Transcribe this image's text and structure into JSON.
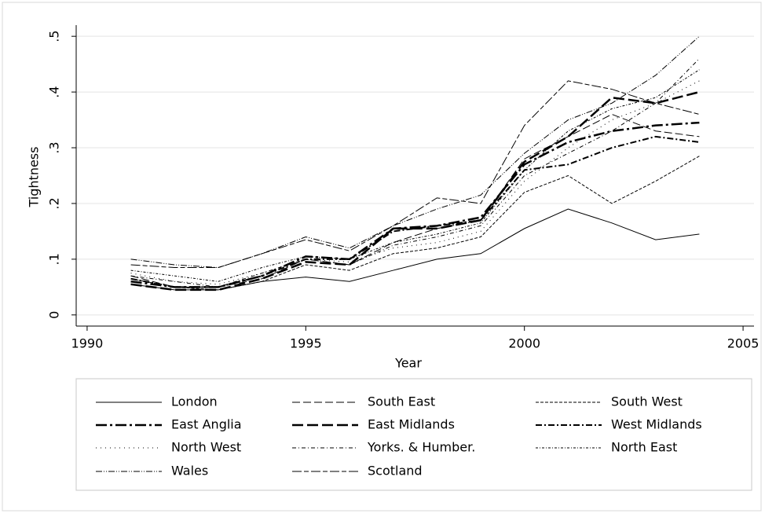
{
  "chart_data": {
    "type": "line",
    "xlabel": "Year",
    "ylabel": "Tightness",
    "x": [
      1991,
      1992,
      1993,
      1994,
      1995,
      1996,
      1997,
      1998,
      1999,
      2000,
      2001,
      2002,
      2003,
      2004
    ],
    "xlim": [
      1989.75,
      2005.25
    ],
    "xticks": [
      1990,
      1995,
      2000,
      2005
    ],
    "ylim": [
      -0.02,
      0.52
    ],
    "yticks": [
      0,
      {
        "value": 0.1,
        "label": ".1"
      },
      {
        "value": 0.2,
        "label": ".2"
      },
      {
        "value": 0.3,
        "label": ".3"
      },
      {
        "value": 0.4,
        "label": ".4"
      },
      {
        "value": 0.5,
        "label": ".5"
      }
    ],
    "grid": true,
    "series": [
      {
        "name": "London",
        "color": "#000000",
        "dash": "",
        "width": 1,
        "values": [
          0.055,
          0.045,
          0.045,
          0.06,
          0.068,
          0.06,
          0.08,
          0.1,
          0.11,
          0.155,
          0.19,
          0.165,
          0.135,
          0.145
        ]
      },
      {
        "name": "South East",
        "color": "#000000",
        "dash": "10 4",
        "width": 1,
        "values": [
          0.07,
          0.05,
          0.05,
          0.065,
          0.1,
          0.09,
          0.13,
          0.155,
          0.17,
          0.28,
          0.32,
          0.36,
          0.33,
          0.32
        ]
      },
      {
        "name": "South West",
        "color": "#000000",
        "dash": "4 2",
        "width": 1,
        "values": [
          0.065,
          0.05,
          0.045,
          0.06,
          0.09,
          0.08,
          0.11,
          0.12,
          0.14,
          0.22,
          0.25,
          0.2,
          0.24,
          0.285
        ]
      },
      {
        "name": "East Anglia",
        "color": "#000000",
        "dash": "14 4 3 4",
        "width": 2.5,
        "values": [
          0.06,
          0.05,
          0.05,
          0.07,
          0.105,
          0.1,
          0.155,
          0.16,
          0.175,
          0.27,
          0.31,
          0.33,
          0.34,
          0.345
        ]
      },
      {
        "name": "East Midlands",
        "color": "#000000",
        "dash": "14 5",
        "width": 2.5,
        "values": [
          0.055,
          0.045,
          0.045,
          0.065,
          0.095,
          0.09,
          0.155,
          0.155,
          0.17,
          0.275,
          0.32,
          0.39,
          0.38,
          0.4
        ]
      },
      {
        "name": "West Midlands",
        "color": "#000000",
        "dash": "8 3 2 3",
        "width": 2,
        "values": [
          0.065,
          0.05,
          0.05,
          0.07,
          0.1,
          0.1,
          0.15,
          0.16,
          0.17,
          0.26,
          0.27,
          0.3,
          0.32,
          0.31
        ]
      },
      {
        "name": "North West",
        "color": "#000000",
        "dash": "1 5",
        "width": 1,
        "values": [
          0.075,
          0.06,
          0.055,
          0.075,
          0.1,
          0.095,
          0.12,
          0.13,
          0.15,
          0.24,
          0.3,
          0.35,
          0.38,
          0.42
        ]
      },
      {
        "name": "Yorks. & Humber.",
        "color": "#000000",
        "dash": "5 3 1 3",
        "width": 1,
        "values": [
          0.07,
          0.06,
          0.05,
          0.075,
          0.1,
          0.09,
          0.125,
          0.14,
          0.16,
          0.25,
          0.29,
          0.33,
          0.38,
          0.46
        ]
      },
      {
        "name": "North East",
        "color": "#000000",
        "dash": "3 2 1 2",
        "width": 1,
        "values": [
          0.08,
          0.07,
          0.06,
          0.085,
          0.105,
          0.1,
          0.13,
          0.145,
          0.165,
          0.26,
          0.33,
          0.37,
          0.39,
          0.44
        ]
      },
      {
        "name": "Wales",
        "color": "#000000",
        "dash": "8 2 1 2 1 2",
        "width": 1,
        "values": [
          0.1,
          0.09,
          0.085,
          0.11,
          0.14,
          0.12,
          0.16,
          0.19,
          0.215,
          0.29,
          0.35,
          0.38,
          0.43,
          0.5
        ]
      },
      {
        "name": "Scotland",
        "color": "#000000",
        "dash": "12 3 6 3",
        "width": 1,
        "values": [
          0.09,
          0.085,
          0.085,
          0.11,
          0.135,
          0.115,
          0.16,
          0.21,
          0.2,
          0.34,
          0.42,
          0.405,
          0.38,
          0.36
        ]
      }
    ]
  }
}
